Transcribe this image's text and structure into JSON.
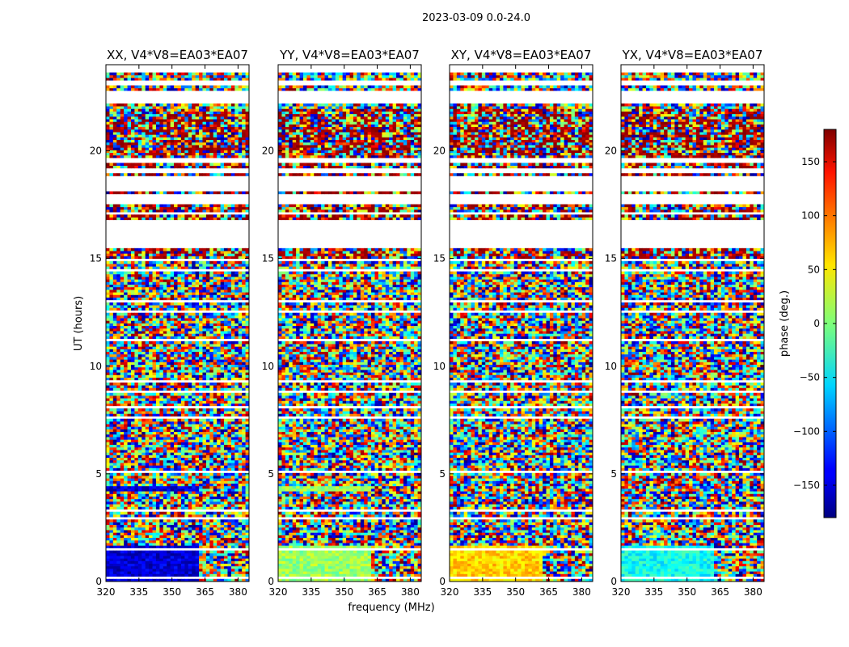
{
  "figure": {
    "suptitle": "2023-03-09 0.0-24.0"
  },
  "chart_data": {
    "type": "heatmap",
    "ylabel": "UT (hours)",
    "xlabel": "frequency (MHz)",
    "xlim": [
      320,
      385
    ],
    "ylim": [
      0,
      24
    ],
    "xticks": [
      320,
      335,
      350,
      365,
      380
    ],
    "yticks": [
      0,
      5,
      10,
      15,
      20
    ],
    "colorbar": {
      "label": "phase (deg.)",
      "range": [
        -180,
        180
      ],
      "ticks": [
        -150,
        -100,
        -50,
        0,
        50,
        100,
        150
      ],
      "colormap": "jet"
    },
    "panels": [
      {
        "title": "XX, V4*V8=EA03*EA07",
        "base_phase": -150,
        "band_hours": [
          0,
          1.7
        ],
        "band2_hours": [
          4.2,
          4.5
        ]
      },
      {
        "title": "YY, V4*V8=EA03*EA07",
        "base_phase": 10,
        "band_hours": [
          0,
          1.7
        ],
        "band2_hours": [
          4.2,
          4.5
        ]
      },
      {
        "title": "XY, V4*V8=EA03*EA07",
        "base_phase": 60,
        "band_hours": [
          0,
          1.7
        ],
        "band2_hours": []
      },
      {
        "title": "YX, V4*V8=EA03*EA07",
        "base_phase": -40,
        "band_hours": [
          0,
          1.7
        ],
        "band2_hours": []
      }
    ],
    "flagged_hours": [
      [
        0.15,
        0.2
      ],
      [
        0.55,
        0.6
      ],
      [
        1.05,
        1.1
      ],
      [
        1.5,
        1.6
      ],
      [
        1.75,
        1.8
      ],
      [
        2.0,
        2.05
      ],
      [
        2.4,
        2.45
      ],
      [
        2.9,
        2.95
      ],
      [
        3.3,
        3.35
      ],
      [
        3.7,
        3.75
      ],
      [
        4.65,
        4.7
      ],
      [
        5.1,
        5.15
      ],
      [
        5.6,
        5.65
      ],
      [
        6.1,
        6.15
      ],
      [
        6.55,
        6.6
      ],
      [
        7.05,
        7.1
      ],
      [
        7.6,
        7.7
      ],
      [
        8.1,
        8.15
      ],
      [
        8.75,
        8.85
      ],
      [
        9.3,
        9.35
      ],
      [
        9.8,
        9.85
      ],
      [
        10.3,
        10.35
      ],
      [
        10.75,
        10.8
      ],
      [
        11.2,
        11.25
      ],
      [
        11.6,
        11.65
      ],
      [
        12.0,
        12.05
      ],
      [
        12.5,
        12.55
      ],
      [
        13.0,
        13.05
      ],
      [
        13.4,
        13.45
      ],
      [
        13.9,
        13.95
      ],
      [
        14.4,
        14.5
      ],
      [
        14.9,
        14.95
      ],
      [
        15.45,
        16.85
      ],
      [
        17.0,
        17.2
      ],
      [
        17.5,
        18.0
      ],
      [
        18.1,
        18.9
      ],
      [
        19.0,
        19.25
      ],
      [
        19.5,
        19.7
      ],
      [
        20.5,
        20.55
      ],
      [
        21.6,
        21.65
      ],
      [
        22.15,
        22.75
      ],
      [
        23.1,
        23.3
      ],
      [
        23.6,
        24.0
      ]
    ]
  }
}
